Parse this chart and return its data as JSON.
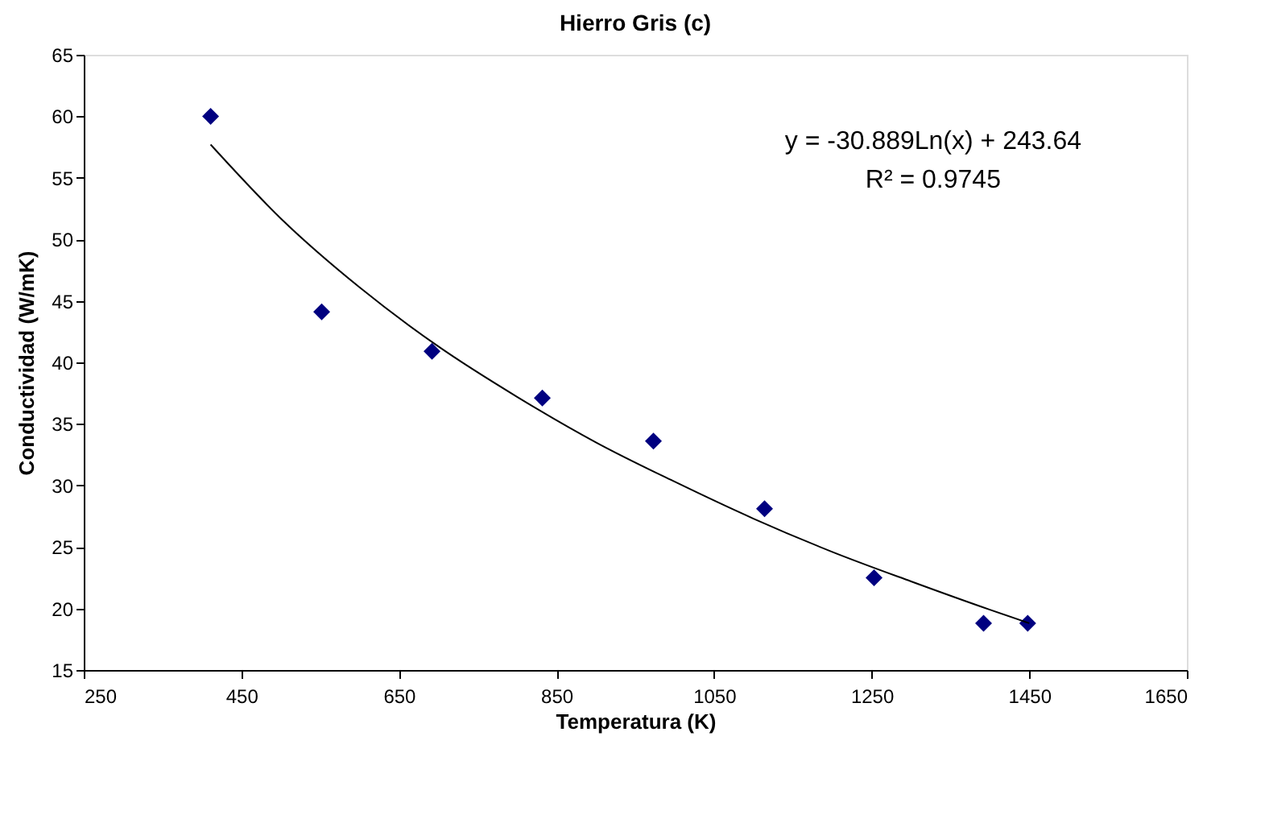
{
  "chart_data": {
    "type": "scatter",
    "title": "Hierro Gris (c)",
    "xlabel": "Temperatura (K)",
    "ylabel": "Conductividad (W/mK)",
    "xlim": [
      250,
      1650
    ],
    "xticks": [
      250,
      450,
      650,
      850,
      1050,
      1250,
      1450,
      1650
    ],
    "ylim": [
      15,
      65
    ],
    "yticks": [
      15,
      20,
      25,
      30,
      35,
      40,
      45,
      50,
      55,
      60,
      65
    ],
    "grid": false,
    "series": [
      {
        "marker": "diamond",
        "color": "#000080",
        "x": [
          411,
          552,
          692,
          832,
          973,
          1114,
          1253,
          1392,
          1448
        ],
        "values": [
          60.0,
          44.1,
          40.9,
          37.1,
          33.6,
          28.1,
          22.5,
          18.8,
          18.8
        ]
      },
      {
        "type": "line",
        "line_style": "solid",
        "marker": "none",
        "color": "#000000",
        "x": [
          411,
          500,
          600,
          700,
          800,
          900,
          1000,
          1100,
          1200,
          1300,
          1400,
          1450
        ],
        "values": [
          57.7,
          51.7,
          46.1,
          41.3,
          37.2,
          33.5,
          30.3,
          27.3,
          24.6,
          22.2,
          19.9,
          18.8
        ]
      }
    ],
    "annotations": [
      "y = -30.889Ln(x) + 243.64",
      "R² = 0.9745"
    ]
  }
}
